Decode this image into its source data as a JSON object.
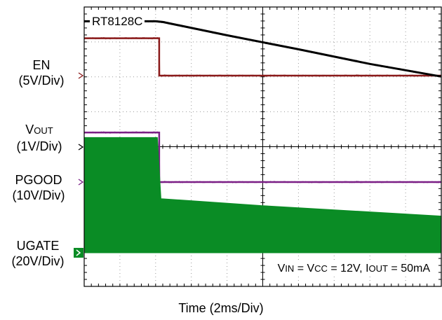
{
  "chart_data": {
    "type": "line",
    "title": "RT8128C",
    "xlabel": "Time (2ms/Div)",
    "x_divisions": 10,
    "y_divisions": 8,
    "grid": true,
    "conditions": {
      "prefix_v": "V",
      "in_sub": "IN",
      "eq1": " = V",
      "cc_sub": "CC",
      "mid": " = 12V, I",
      "out_sub": "OUT",
      "tail": " = 50mA"
    },
    "channels": [
      {
        "name": "EN",
        "scale": "(5V/Div)",
        "color": "#8b1a1a",
        "points": [
          [
            0,
            1.07
          ],
          [
            2.1,
            1.07
          ],
          [
            2.1,
            0
          ],
          [
            10,
            0
          ]
        ]
      },
      {
        "name_main": "V",
        "name_sub": "OUT",
        "scale": "(1V/Div)",
        "color": "#000000",
        "points": [
          [
            0,
            3.6
          ],
          [
            1,
            3.6
          ],
          [
            2,
            3.6
          ],
          [
            2.2,
            3.58
          ],
          [
            4,
            3.2
          ],
          [
            6,
            2.8
          ],
          [
            8,
            2.38
          ],
          [
            10,
            2.02
          ]
        ]
      },
      {
        "name": "PGOOD",
        "scale": "(10V/Div)",
        "color": "#7b1f86",
        "points": [
          [
            0,
            1.42
          ],
          [
            2.1,
            1.42
          ],
          [
            2.1,
            0
          ],
          [
            10,
            0
          ]
        ]
      },
      {
        "name": "UGATE",
        "scale": "(20V/Div)",
        "color": "#0a8c25",
        "envelope": {
          "low": 0,
          "high": [
            [
              0,
              3.3
            ],
            [
              2.05,
              3.3
            ],
            [
              2.15,
              1.55
            ],
            [
              5,
              1.35
            ],
            [
              10,
              1.05
            ]
          ]
        }
      }
    ]
  }
}
